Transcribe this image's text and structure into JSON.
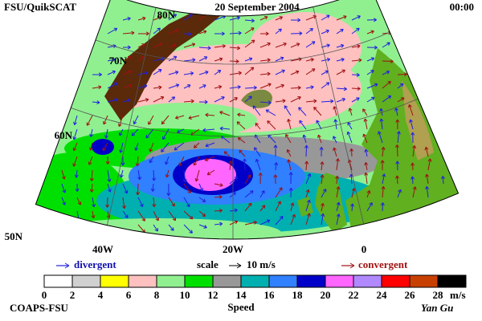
{
  "header": {
    "title": "FSU/QuikSCAT",
    "date": "20 September 2004",
    "time": "00:00"
  },
  "map": {
    "lat_labels": [
      "80N",
      "70N",
      "60N",
      "50N"
    ],
    "lon_labels": [
      "40W",
      "20W",
      "0"
    ]
  },
  "legend": {
    "divergent": "divergent",
    "scale": "scale",
    "scale_value": "10 m/s",
    "convergent": "convergent"
  },
  "colorbar": {
    "bounds": [
      0,
      2,
      4,
      6,
      8,
      10,
      12,
      14,
      16,
      18,
      20,
      22,
      24,
      26,
      28
    ],
    "colors": [
      "#ffffff",
      "#d0d0d0",
      "#ffff00",
      "#ffc0c0",
      "#90f090",
      "#00e000",
      "#989898",
      "#00b0b0",
      "#3080ff",
      "#0000c8",
      "#ff66ff",
      "#b088ff",
      "#ff0000",
      "#c84000",
      "#000000"
    ],
    "unit": "m/s",
    "title": "Speed"
  },
  "footer": {
    "source": "COAPS-FSU",
    "author": "Yan Gu"
  }
}
